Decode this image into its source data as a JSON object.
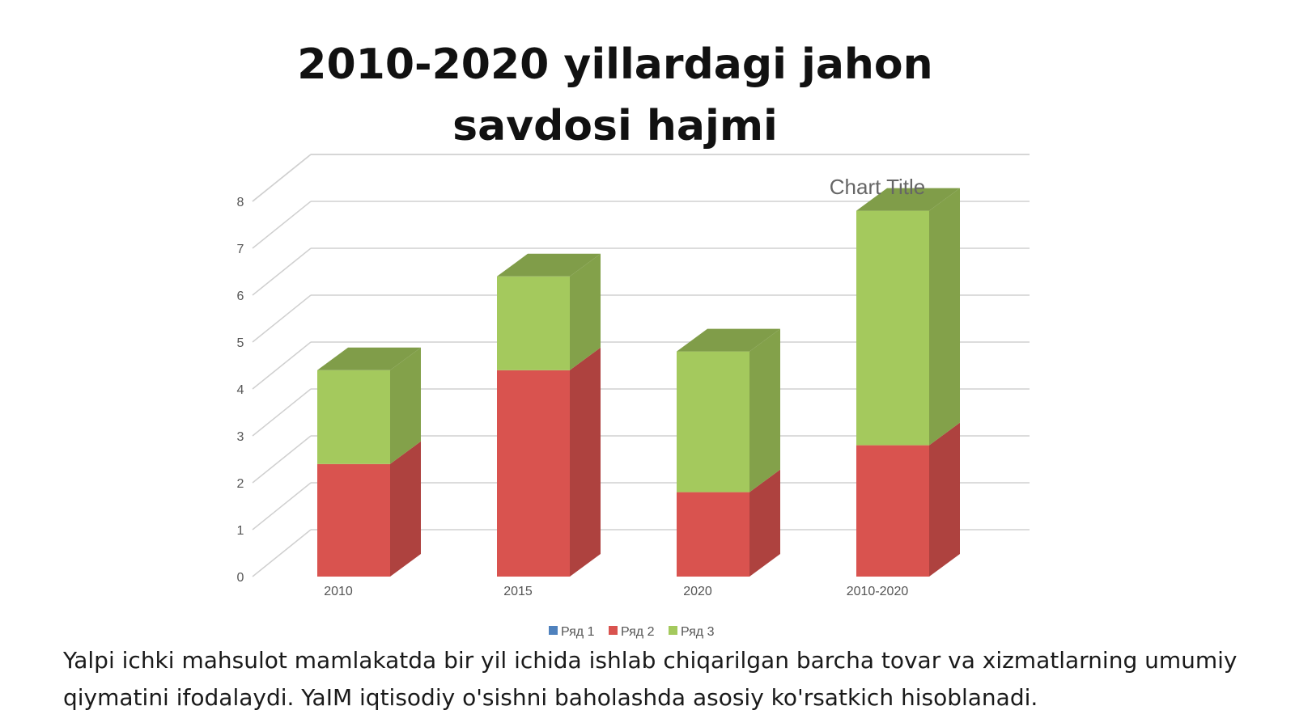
{
  "slide": {
    "title": "2010-2020 yillardagi jahon savdosi hajmi",
    "caption": "Yalpi ichki mahsulot mamlakatda bir yil ichida ishlab chiqarilgan barcha tovar va xizmatlarning umumiy qiymatini ifodalaydi. YaIM iqtisodiy o'sishni baholashda asosiy ko'rsatkich hisoblanadi."
  },
  "chart_data": {
    "type": "bar",
    "stacked": true,
    "three_d": true,
    "title": "Chart Title",
    "xlabel": "",
    "ylabel": "",
    "categories": [
      "2010",
      "2015",
      "2020",
      "2010-2020"
    ],
    "y_ticks": [
      "0",
      "1",
      "2",
      "3",
      "4",
      "5",
      "6",
      "7",
      "8"
    ],
    "ylim": [
      0,
      8
    ],
    "grid": true,
    "legend_position": "bottom",
    "series": [
      {
        "name": "Ряд 1",
        "values": [
          0,
          0,
          0,
          0
        ],
        "color": "#4f81bd"
      },
      {
        "name": "Ряд 2",
        "values": [
          2.4,
          4.4,
          1.8,
          2.8
        ],
        "color": "#d9534f"
      },
      {
        "name": "Ряд 3",
        "values": [
          2.0,
          2.0,
          3.0,
          5.0
        ],
        "color": "#a4c95d"
      }
    ]
  }
}
